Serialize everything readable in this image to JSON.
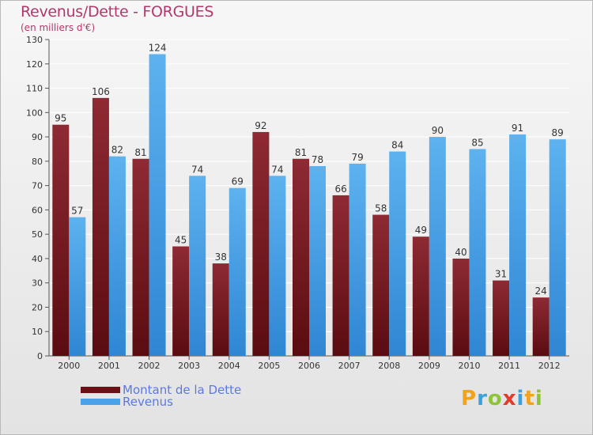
{
  "title": "Revenus/Dette - FORGUES",
  "subtitle": "(en milliers d'€)",
  "colors": {
    "dette": "#7a1a1f",
    "revenus": "#4aa3e8",
    "title": "#b3376c",
    "legend_text": "#5b78e6"
  },
  "chart_data": {
    "type": "bar",
    "categories": [
      "2000",
      "2001",
      "2002",
      "2003",
      "2004",
      "2005",
      "2006",
      "2007",
      "2008",
      "2009",
      "2010",
      "2011",
      "2012"
    ],
    "series": [
      {
        "name": "Montant de la Dette",
        "values": [
          95,
          106,
          81,
          45,
          38,
          92,
          81,
          66,
          58,
          49,
          40,
          31,
          24
        ]
      },
      {
        "name": "Revenus",
        "values": [
          57,
          82,
          124,
          74,
          69,
          74,
          78,
          79,
          84,
          90,
          85,
          91,
          89
        ]
      }
    ],
    "ylim": [
      0,
      130
    ],
    "yticks": [
      0,
      10,
      20,
      30,
      40,
      50,
      60,
      70,
      80,
      90,
      100,
      110,
      120,
      130
    ],
    "grid": true,
    "legend": "bottom-left"
  },
  "legend": {
    "dette": "Montant de la Dette",
    "revenus": "Revenus"
  },
  "logo": {
    "text": "Proxiti",
    "letters": [
      "P",
      "r",
      "o",
      "x",
      "i",
      "t",
      "i"
    ]
  }
}
